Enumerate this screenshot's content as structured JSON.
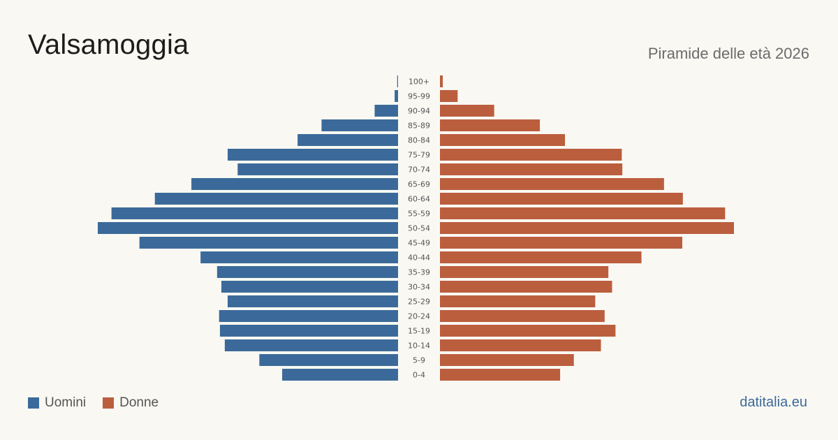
{
  "header": {
    "title": "Valsamoggia",
    "subtitle": "Piramide delle età 2026"
  },
  "legend": {
    "men_label": "Uomini",
    "women_label": "Donne"
  },
  "brand": "datitalia.eu",
  "colors": {
    "men": "#3b6a9a",
    "women": "#bb5e3e",
    "background": "#faf8f3"
  },
  "chart_data": {
    "type": "bar",
    "orientation": "horizontal-pyramid",
    "categories": [
      "100+",
      "95-99",
      "90-94",
      "85-89",
      "80-84",
      "75-79",
      "70-74",
      "65-69",
      "60-64",
      "55-59",
      "50-54",
      "45-49",
      "40-44",
      "35-39",
      "30-34",
      "25-29",
      "20-24",
      "15-19",
      "10-14",
      "5-9",
      "0-4"
    ],
    "series": [
      {
        "name": "Uomini",
        "color": "#3b6a9a",
        "values": [
          3,
          12,
          82,
          268,
          352,
          597,
          562,
          724,
          852,
          1004,
          1052,
          906,
          692,
          634,
          619,
          597,
          627,
          624,
          607,
          486,
          406
        ]
      },
      {
        "name": "Donne",
        "color": "#bb5e3e",
        "values": [
          10,
          62,
          190,
          350,
          438,
          637,
          639,
          785,
          851,
          999,
          1030,
          849,
          706,
          590,
          603,
          544,
          577,
          615,
          564,
          469,
          421
        ]
      }
    ],
    "xlim": [
      0,
      1052
    ],
    "legend_position": "bottom-left",
    "grid": false
  }
}
